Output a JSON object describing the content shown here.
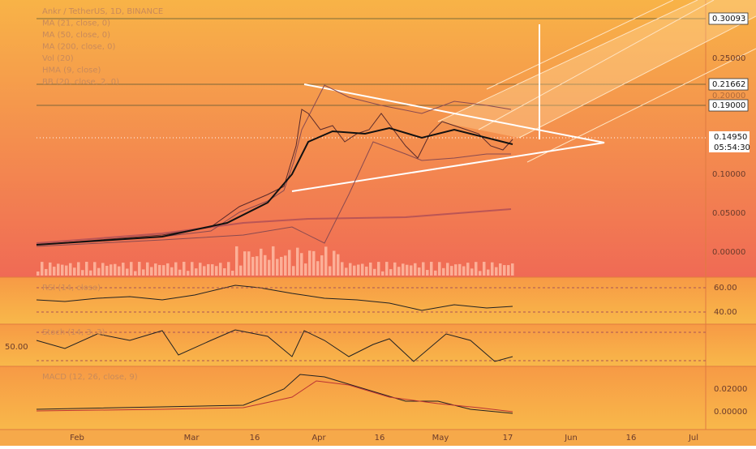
{
  "legend": [
    "Ankr / TetherUS, 1D, BINANCE",
    "MA (21, close, 0)",
    "MA (50, close, 0)",
    "MA (200, close, 0)",
    "Vol (20)",
    "HMA (9, close)",
    "BB (20, close, 2, 0)"
  ],
  "price_axis": {
    "boxed": [
      "0.30093",
      "0.21662",
      "0.19000"
    ],
    "plain": [
      "0.25000",
      "0.20000",
      "0.10000",
      "0.05000",
      "0.00000"
    ],
    "last_price": "0.14950",
    "countdown": "05:54:30"
  },
  "rsi": {
    "title": "RSI (14, close)",
    "ticks": [
      "60.00",
      "40.00"
    ]
  },
  "stoch": {
    "title": "Stoch (14, 3, 3)",
    "ticks": [
      "50.00"
    ]
  },
  "macd": {
    "title": "MACD (12, 26, close, 9)",
    "ticks": [
      "0.02000",
      "0.00000"
    ]
  },
  "time_axis": [
    "Feb",
    "Mar",
    "16",
    "Apr",
    "16",
    "May",
    "17",
    "Jun",
    "16",
    "Jul"
  ]
}
